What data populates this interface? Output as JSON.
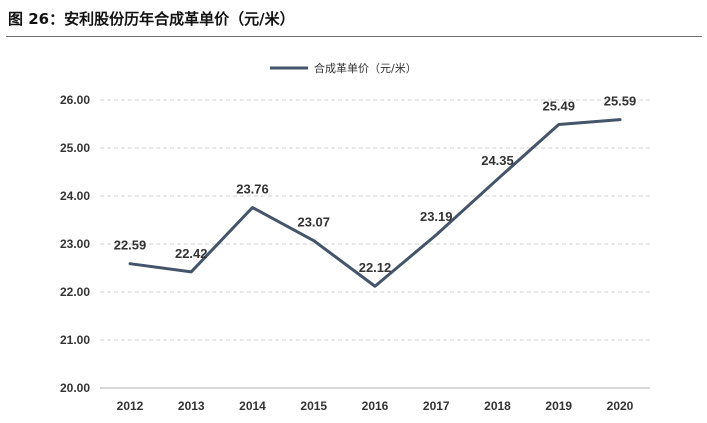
{
  "figure": {
    "title": "图 26：安利股份历年合成革单价（元/米）"
  },
  "chart_data": {
    "type": "line",
    "categories": [
      "2012",
      "2013",
      "2014",
      "2015",
      "2016",
      "2017",
      "2018",
      "2019",
      "2020"
    ],
    "series": [
      {
        "name": "合成革单价（元/米）",
        "values": [
          22.59,
          22.42,
          23.76,
          23.07,
          22.12,
          23.19,
          24.35,
          25.49,
          25.59
        ],
        "color": "#44546a"
      }
    ],
    "data_labels": [
      "22.59",
      "22.42",
      "23.76",
      "23.07",
      "22.12",
      "23.19",
      "24.35",
      "25.49",
      "25.59"
    ],
    "y_ticks": [
      "20.00",
      "21.00",
      "22.00",
      "23.00",
      "24.00",
      "25.00",
      "26.00"
    ],
    "ylim": [
      20,
      26
    ],
    "grid": true,
    "legend_position": "top-center",
    "title": "",
    "xlabel": "",
    "ylabel": ""
  }
}
